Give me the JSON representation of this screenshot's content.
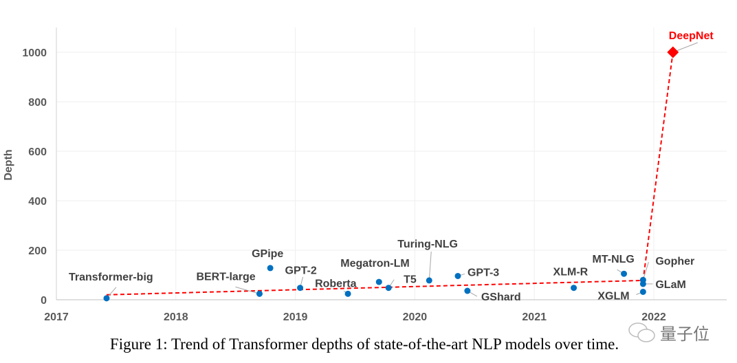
{
  "chart_data": {
    "type": "scatter",
    "title": "",
    "xlabel": "",
    "ylabel": "Depth",
    "xlim": [
      2017,
      2022.6
    ],
    "ylim": [
      0,
      1100
    ],
    "xticks": [
      "2017",
      "2018",
      "2019",
      "2020",
      "2021",
      "2022"
    ],
    "yticks": [
      "0",
      "200",
      "400",
      "600",
      "800",
      "1000"
    ],
    "grid": true,
    "legend": "none",
    "colors": {
      "models": "#0070C0",
      "deepnet": "#FF0000",
      "trend": "#FF0000"
    },
    "points": [
      {
        "name": "Transformer-big",
        "x": 2017.42,
        "y": 6
      },
      {
        "name": "BERT-large",
        "x": 2018.7,
        "y": 24
      },
      {
        "name": "GPipe",
        "x": 2018.79,
        "y": 128
      },
      {
        "name": "GPT-2",
        "x": 2019.04,
        "y": 48
      },
      {
        "name": "Roberta",
        "x": 2019.44,
        "y": 24
      },
      {
        "name": "Megatron-LM",
        "x": 2019.7,
        "y": 72
      },
      {
        "name": "T5",
        "x": 2019.78,
        "y": 48
      },
      {
        "name": "Turing-NLG",
        "x": 2020.12,
        "y": 78
      },
      {
        "name": "GPT-3",
        "x": 2020.36,
        "y": 96
      },
      {
        "name": "GShard",
        "x": 2020.44,
        "y": 36
      },
      {
        "name": "XLM-R",
        "x": 2021.33,
        "y": 48
      },
      {
        "name": "MT-NLG",
        "x": 2021.75,
        "y": 105
      },
      {
        "name": "Gopher",
        "x": 2021.91,
        "y": 80
      },
      {
        "name": "GLaM",
        "x": 2021.91,
        "y": 64
      },
      {
        "name": "XGLM",
        "x": 2021.91,
        "y": 32
      }
    ],
    "highlight": {
      "name": "DeepNet",
      "x": 2022.16,
      "y": 1000
    },
    "trend_line": [
      {
        "x": 2017.42,
        "y": 20
      },
      {
        "x": 2021.91,
        "y": 78
      },
      {
        "x": 2022.16,
        "y": 1000
      }
    ]
  },
  "caption": "Figure 1: Trend of Transformer depths of state-of-the-art NLP models over time.",
  "watermark": "量子位"
}
